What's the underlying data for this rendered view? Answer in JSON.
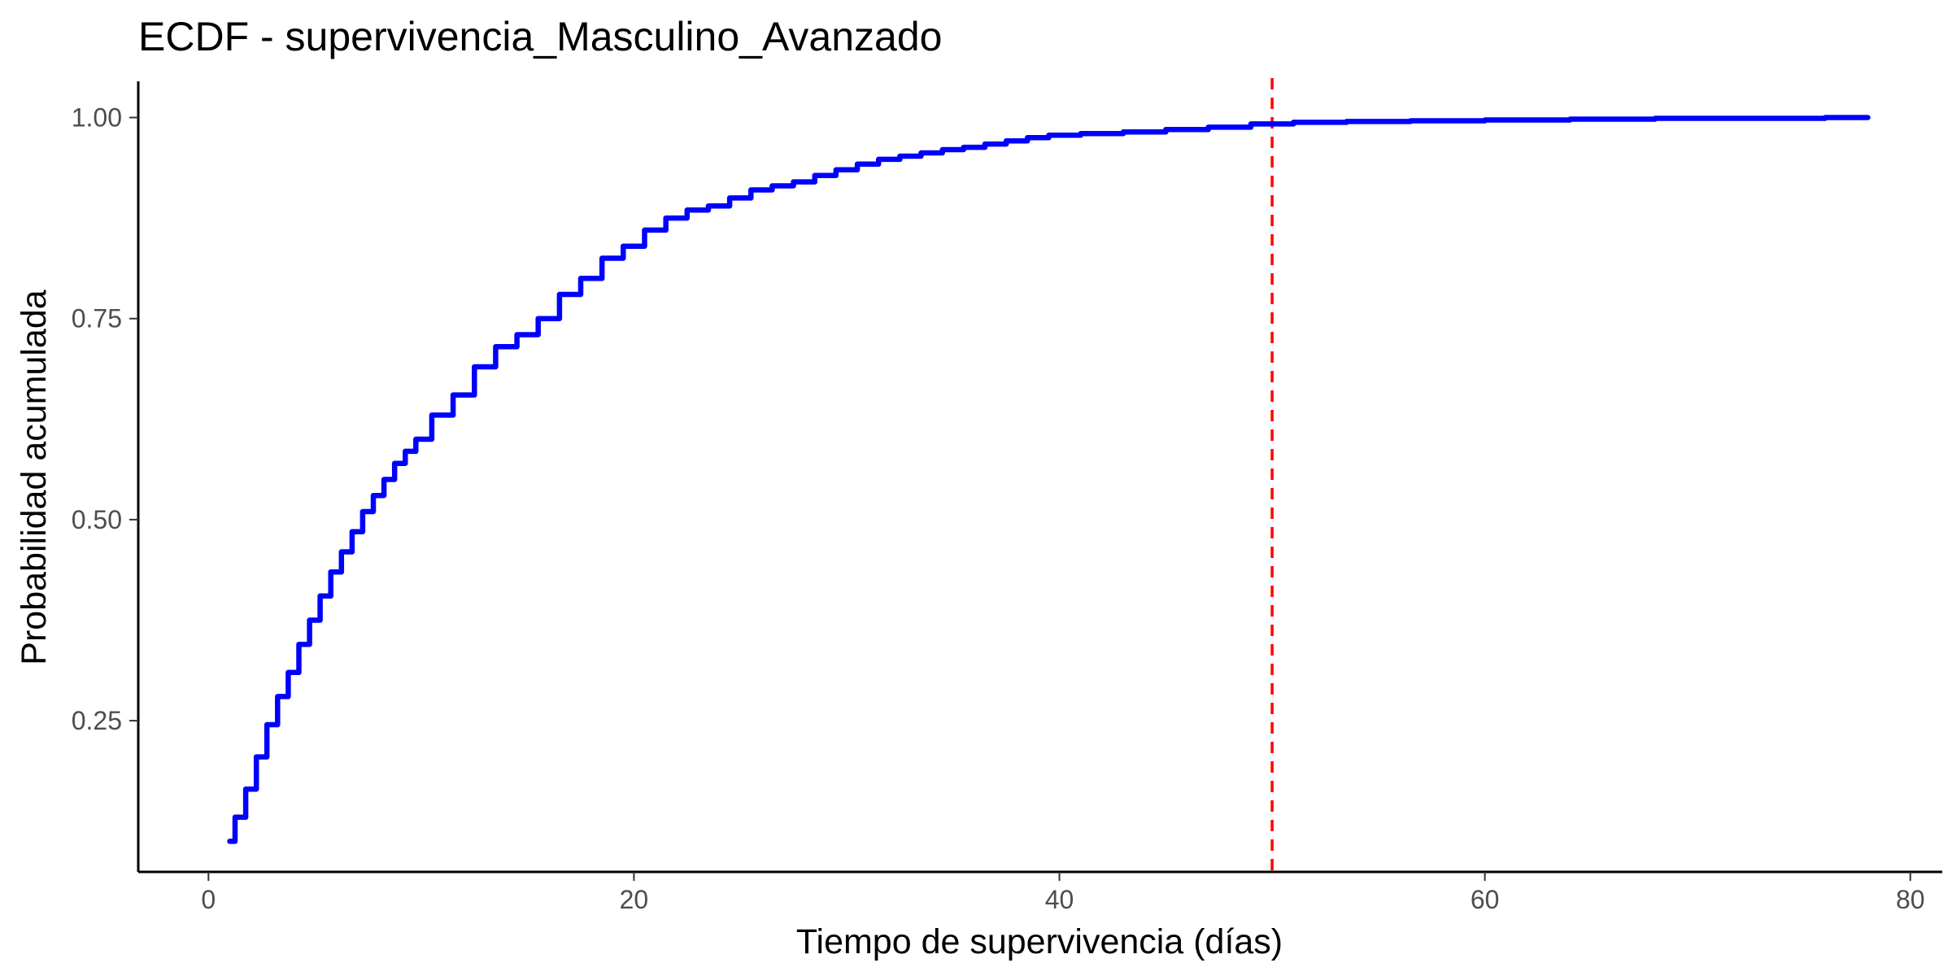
{
  "chart_data": {
    "type": "line",
    "title": "ECDF - supervivencia_Masculino_Avanzado",
    "xlabel": "Tiempo de supervivencia (días)",
    "ylabel": "Probabilidad acumulada",
    "xlim": [
      -3.3,
      81.5
    ],
    "ylim": [
      0.062,
      1.045
    ],
    "x_ticks": [
      0,
      20,
      40,
      60,
      80
    ],
    "x_tick_labels": [
      "0",
      "20",
      "40",
      "60",
      "80"
    ],
    "y_ticks": [
      0.25,
      0.5,
      0.75,
      1.0
    ],
    "y_tick_labels": [
      "0.25",
      "0.50",
      "0.75",
      "1.00"
    ],
    "grid": false,
    "legend": "none",
    "series": [
      {
        "color": "#0000ff",
        "x": [
          1,
          1.5,
          2,
          2.5,
          3,
          3.5,
          4,
          4.5,
          5,
          5.5,
          6,
          6.5,
          7,
          7.5,
          8,
          8.5,
          9,
          9.5,
          10,
          11,
          12,
          13,
          14,
          15,
          16,
          17,
          18,
          19,
          20,
          21,
          22,
          23,
          24,
          25,
          26,
          27,
          28,
          29,
          30,
          31,
          32,
          33,
          34,
          35,
          36,
          37,
          38,
          39,
          40,
          42,
          44,
          46,
          48,
          50,
          52,
          55,
          58,
          62,
          66,
          70,
          74,
          78
        ],
        "y": [
          0.1,
          0.13,
          0.165,
          0.205,
          0.245,
          0.28,
          0.31,
          0.345,
          0.375,
          0.405,
          0.435,
          0.46,
          0.485,
          0.51,
          0.53,
          0.55,
          0.57,
          0.585,
          0.6,
          0.63,
          0.655,
          0.69,
          0.715,
          0.73,
          0.75,
          0.78,
          0.8,
          0.825,
          0.84,
          0.86,
          0.875,
          0.885,
          0.89,
          0.9,
          0.91,
          0.915,
          0.92,
          0.928,
          0.935,
          0.942,
          0.948,
          0.952,
          0.956,
          0.96,
          0.963,
          0.967,
          0.971,
          0.975,
          0.978,
          0.98,
          0.982,
          0.985,
          0.988,
          0.992,
          0.994,
          0.995,
          0.996,
          0.997,
          0.998,
          0.999,
          0.999,
          1.0
        ]
      }
    ],
    "reference_line": {
      "orientation": "vertical",
      "x": 50,
      "color": "#ff0000",
      "style": "dashed"
    }
  }
}
